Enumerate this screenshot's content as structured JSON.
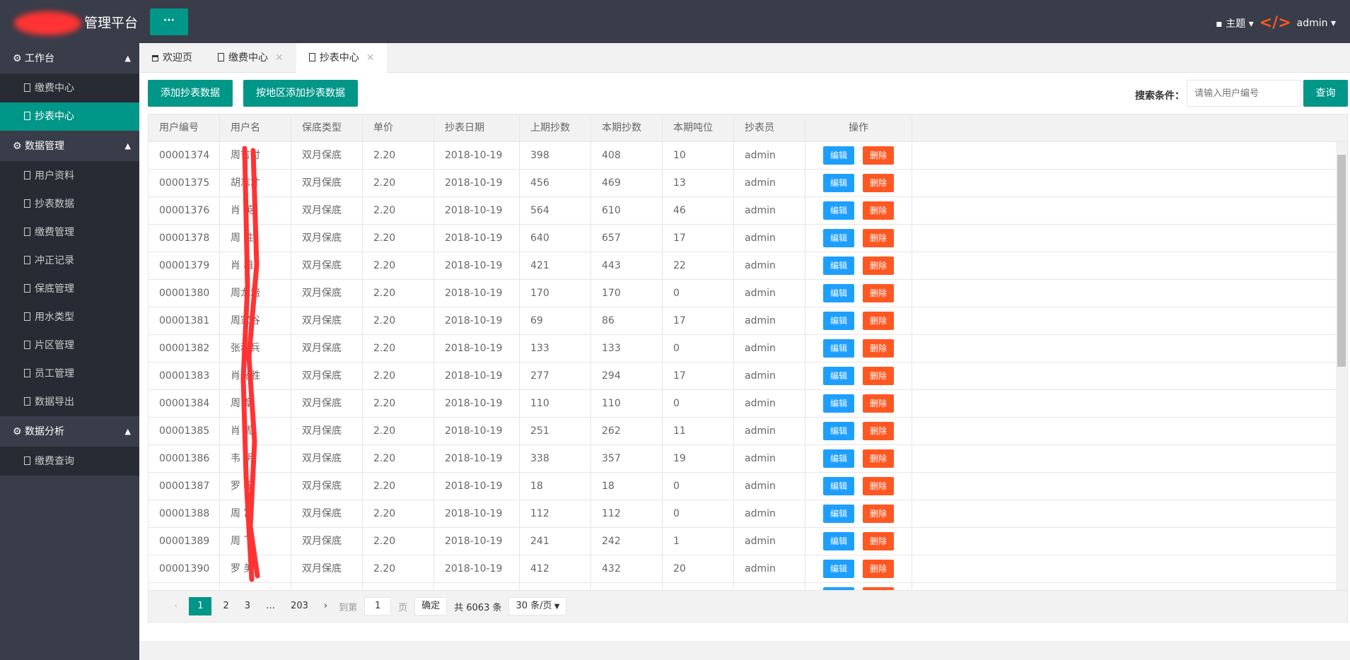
{
  "header": {
    "title": "管理平台",
    "menu_label": "···",
    "theme": "主题",
    "user": "admin"
  },
  "sidebar": [
    {
      "label": "工作台",
      "items": [
        "缴费中心",
        "抄表中心"
      ]
    },
    {
      "label": "数据管理",
      "items": [
        "用户资料",
        "抄表数据",
        "缴费管理",
        "冲正记录",
        "保底管理",
        "用水类型",
        "片区管理",
        "员工管理",
        "数据导出"
      ]
    },
    {
      "label": "数据分析",
      "items": [
        "缴费查询"
      ]
    }
  ],
  "active_item": "抄表中心",
  "tabs": [
    "欢迎页",
    "缴费中心",
    "抄表中心"
  ],
  "toolbar": {
    "add": "添加抄表数据",
    "add_by_area": "按地区添加抄表数据",
    "search_label": "搜索条件：",
    "search_placeholder": "请输入用户编号",
    "search_btn": "查询"
  },
  "table": {
    "columns": [
      "用户编号",
      "用户名",
      "保底类型",
      "单价",
      "抄表日期",
      "上期抄数",
      "本期抄数",
      "本期吨位",
      "抄表员",
      "操作"
    ],
    "edit": "编辑",
    "delete": "删除",
    "rows": [
      [
        "00001374",
        "周吉付",
        "双月保底",
        "2.20",
        "2018-10-19",
        "398",
        "408",
        "10",
        "admin"
      ],
      [
        "00001375",
        "胡志才",
        "双月保底",
        "2.20",
        "2018-10-19",
        "456",
        "469",
        "13",
        "admin"
      ],
      [
        "00001376",
        "肖 英",
        "双月保底",
        "2.20",
        "2018-10-19",
        "564",
        "610",
        "46",
        "admin"
      ],
      [
        "00001378",
        "周 胜",
        "双月保底",
        "2.20",
        "2018-10-19",
        "640",
        "657",
        "17",
        "admin"
      ],
      [
        "00001379",
        "肖 雄",
        "双月保底",
        "2.20",
        "2018-10-19",
        "421",
        "443",
        "22",
        "admin"
      ],
      [
        "00001380",
        "周龙培",
        "双月保底",
        "2.20",
        "2018-10-19",
        "170",
        "170",
        "0",
        "admin"
      ],
      [
        "00001381",
        "周家谷",
        "双月保底",
        "2.20",
        "2018-10-19",
        "69",
        "86",
        "17",
        "admin"
      ],
      [
        "00001382",
        "张和兵",
        "双月保底",
        "2.20",
        "2018-10-19",
        "133",
        "133",
        "0",
        "admin"
      ],
      [
        "00001383",
        "肖光胜",
        "双月保底",
        "2.20",
        "2018-10-19",
        "277",
        "294",
        "17",
        "admin"
      ],
      [
        "00001384",
        "周 章",
        "双月保底",
        "2.20",
        "2018-10-19",
        "110",
        "110",
        "0",
        "admin"
      ],
      [
        "00001385",
        "肖 周",
        "双月保底",
        "2.20",
        "2018-10-19",
        "251",
        "262",
        "11",
        "admin"
      ],
      [
        "00001386",
        "韦 明",
        "双月保底",
        "2.20",
        "2018-10-19",
        "338",
        "357",
        "19",
        "admin"
      ],
      [
        "00001387",
        "罗 权",
        "双月保底",
        "2.20",
        "2018-10-19",
        "18",
        "18",
        "0",
        "admin"
      ],
      [
        "00001388",
        "周 富",
        "双月保底",
        "2.20",
        "2018-10-19",
        "112",
        "112",
        "0",
        "admin"
      ],
      [
        "00001389",
        "周 飞",
        "双月保底",
        "2.20",
        "2018-10-19",
        "241",
        "242",
        "1",
        "admin"
      ],
      [
        "00001390",
        "罗 美",
        "双月保底",
        "2.20",
        "2018-10-19",
        "412",
        "432",
        "20",
        "admin"
      ]
    ]
  },
  "pager": {
    "pages": [
      "1",
      "2",
      "3",
      "…",
      "203"
    ],
    "goto": "到第",
    "page_value": "1",
    "page_unit": "页",
    "confirm": "确定",
    "total": "共 6063 条",
    "per_page": "30 条/页"
  },
  "colors": {
    "header": "#393d49",
    "accent": "#009688",
    "edit": "#1e9fff",
    "delete": "#ff5722"
  }
}
